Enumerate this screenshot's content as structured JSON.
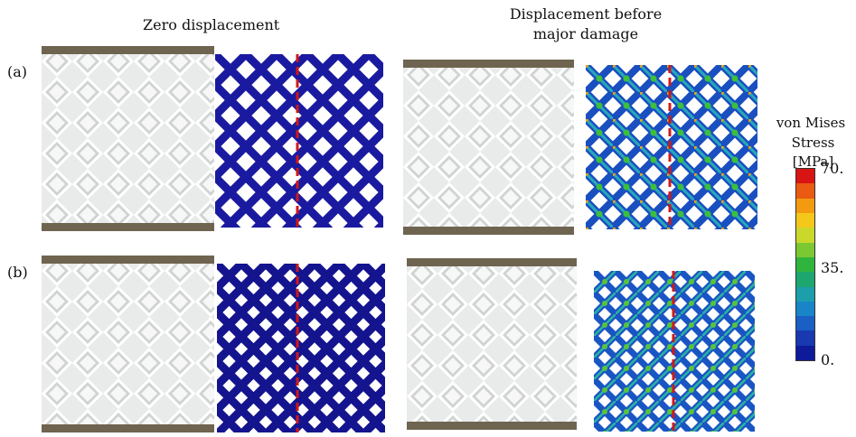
{
  "headings": {
    "zero": "Zero displacement",
    "displaced_line1": "Displacement before",
    "displaced_line2": "major damage"
  },
  "rows": {
    "a": "(a)",
    "b": "(b)"
  },
  "legend": {
    "title_line1": "von Mises",
    "title_line2": "Stress [MPa]",
    "tick_top": "70.",
    "tick_mid": "35.",
    "tick_bottom": "0.",
    "colors": [
      "#d91414",
      "#ea5a12",
      "#f39a10",
      "#f4c81b",
      "#c9d82b",
      "#7cc832",
      "#2fb53d",
      "#1ea66f",
      "#1c9fab",
      "#1a84c9",
      "#1a5fc4",
      "#1839b0",
      "#0e1a9a"
    ]
  },
  "colors": {
    "undeformed": "#1a1aa0",
    "cut_line": "#d01818"
  }
}
